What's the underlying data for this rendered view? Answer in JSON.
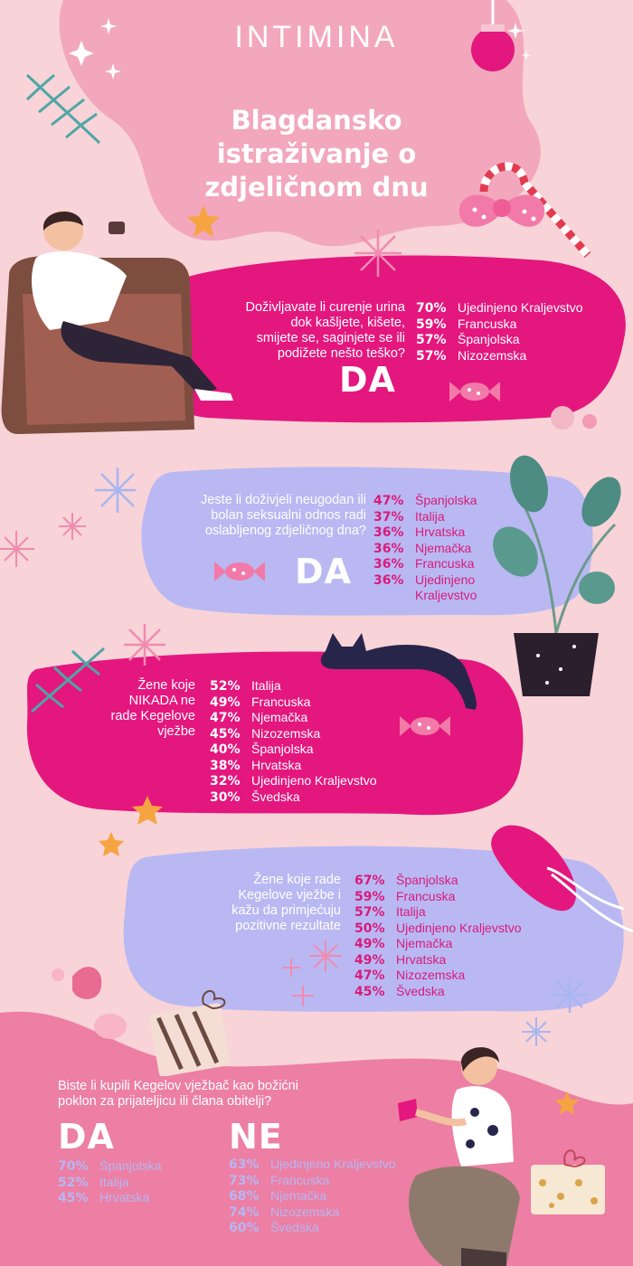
{
  "brand": {
    "logo": "INTIMINA"
  },
  "title": {
    "line1": "Blagdansko",
    "line2": "istraživanje o",
    "line3": "zdjeličnom dnu"
  },
  "colors": {
    "background": "#f8d3d8",
    "magenta": "#e4177e",
    "lavender": "#b9b8f3",
    "pink_blob": "#f2a7bc",
    "dark_pink": "#e87a9d"
  },
  "sections": [
    {
      "question": [
        "Doživljavate li curenje urina",
        "dok kašljete, kišete,",
        "smijete se, saginjete se ili",
        "podižete nešto teško?"
      ],
      "answer": "DA",
      "stats": [
        {
          "pct": "70%",
          "country": "Ujedinjeno Kraljevstvo"
        },
        {
          "pct": "59%",
          "country": "Francuska"
        },
        {
          "pct": "57%",
          "country": "Španjolska"
        },
        {
          "pct": "57%",
          "country": "Nizozemska"
        }
      ]
    },
    {
      "question": [
        "Jeste li doživjeli neugodan ili",
        "bolan seksualni odnos radi",
        "oslabljenog zdjeličnog dna?"
      ],
      "answer": "DA",
      "stats": [
        {
          "pct": "47%",
          "country": "Španjolska"
        },
        {
          "pct": "37%",
          "country": "Italija"
        },
        {
          "pct": "36%",
          "country": "Hrvatska"
        },
        {
          "pct": "36%",
          "country": "Njemačka"
        },
        {
          "pct": "36%",
          "country": "Francuska"
        },
        {
          "pct": "36%",
          "country": "Ujedinjeno"
        },
        {
          "pct": "",
          "country": "Kraljevstvo"
        }
      ]
    },
    {
      "question": [
        "Žene koje",
        "NIKADA ne",
        "rade Kegelove",
        "vježbe"
      ],
      "stats": [
        {
          "pct": "52%",
          "country": "Italija"
        },
        {
          "pct": "49%",
          "country": "Francuska"
        },
        {
          "pct": "47%",
          "country": "Njemačka"
        },
        {
          "pct": "45%",
          "country": "Nizozemska"
        },
        {
          "pct": "40%",
          "country": "Španjolska"
        },
        {
          "pct": "38%",
          "country": "Hrvatska"
        },
        {
          "pct": "32%",
          "country": "Ujedinjeno Kraljevstvo"
        },
        {
          "pct": "30%",
          "country": "Švedska"
        }
      ]
    },
    {
      "question": [
        "Žene koje rade",
        "Kegelove vježbe i",
        "kažu da primjećuju",
        "pozitivne rezultate"
      ],
      "stats": [
        {
          "pct": "67%",
          "country": "Španjolska"
        },
        {
          "pct": "59%",
          "country": "Francuska"
        },
        {
          "pct": "57%",
          "country": "Italija"
        },
        {
          "pct": "50%",
          "country": "Ujedinjeno Kraljevstvo"
        },
        {
          "pct": "49%",
          "country": "Njemačka"
        },
        {
          "pct": "49%",
          "country": "Hrvatska"
        },
        {
          "pct": "47%",
          "country": "Nizozemska"
        },
        {
          "pct": "45%",
          "country": "Švedska"
        }
      ]
    },
    {
      "question": [
        "Biste li kupili Kegelov vježbač kao božićni",
        "poklon za prijateljicu ili člana obitelji?"
      ],
      "yes": {
        "label": "DA",
        "stats": [
          {
            "pct": "70%",
            "country": "Španjolska"
          },
          {
            "pct": "52%",
            "country": "Italija"
          },
          {
            "pct": "45%",
            "country": "Hrvatska"
          }
        ]
      },
      "no": {
        "label": "NE",
        "stats": [
          {
            "pct": "63%",
            "country": "Ujedinjeno Kraljevstvo"
          },
          {
            "pct": "73%",
            "country": "Francuska"
          },
          {
            "pct": "68%",
            "country": "Njemačka"
          },
          {
            "pct": "74%",
            "country": "Nizozemska"
          },
          {
            "pct": "60%",
            "country": "Švedska"
          }
        ]
      }
    }
  ]
}
